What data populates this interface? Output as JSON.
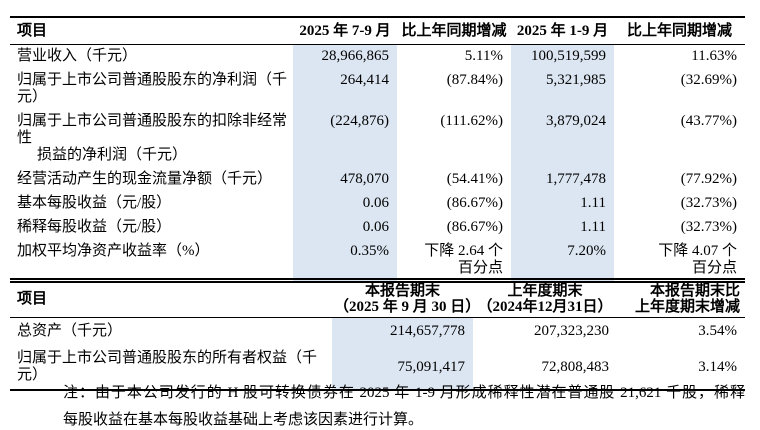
{
  "colors": {
    "highlight": "#dce6f2",
    "border": "#000000",
    "text": "#000000",
    "background": "#ffffff"
  },
  "table1": {
    "headers": [
      "项目",
      "2025 年 7-9 月",
      "比上年同期增减",
      "2025 年 1-9 月",
      "比上年同期增减"
    ],
    "rows": [
      {
        "label": [
          "营业收入（千元）"
        ],
        "cells": [
          [
            "28,966,865"
          ],
          [
            "5.11%"
          ],
          [
            "100,519,599"
          ],
          [
            "11.63%"
          ]
        ]
      },
      {
        "label": [
          "归属于上市公司普通股股东的净利润（千元）"
        ],
        "cells": [
          [
            "264,414"
          ],
          [
            "(87.84%)"
          ],
          [
            "5,321,985"
          ],
          [
            "(32.69%)"
          ]
        ]
      },
      {
        "label": [
          "归属于上市公司普通股股东的扣除非经常性",
          "损益的净利润（千元）"
        ],
        "cells": [
          [
            "(224,876)"
          ],
          [
            "(111.62%)"
          ],
          [
            "3,879,024"
          ],
          [
            "(43.77%)"
          ]
        ]
      },
      {
        "label": [
          "经营活动产生的现金流量净额（千元）"
        ],
        "cells": [
          [
            "478,070"
          ],
          [
            "(54.41%)"
          ],
          [
            "1,777,478"
          ],
          [
            "(77.92%)"
          ]
        ]
      },
      {
        "label": [
          "基本每股收益（元/股）"
        ],
        "cells": [
          [
            "0.06"
          ],
          [
            "(86.67%)"
          ],
          [
            "1.11"
          ],
          [
            "(32.73%)"
          ]
        ]
      },
      {
        "label": [
          "稀释每股收益（元/股）"
        ],
        "cells": [
          [
            "0.06"
          ],
          [
            "(86.67%)"
          ],
          [
            "1.11"
          ],
          [
            "(32.73%)"
          ]
        ]
      },
      {
        "label": [
          "加权平均净资产收益率（%）"
        ],
        "cells": [
          [
            "0.35%"
          ],
          [
            "下降 2.64 个",
            "百分点"
          ],
          [
            "7.20%"
          ],
          [
            "下降 4.07 个",
            "百分点"
          ]
        ]
      }
    ]
  },
  "table2": {
    "headers": [
      [
        "项目"
      ],
      [
        "本报告期末",
        "（2025 年 9 月 30 日）"
      ],
      [
        "上年度期末",
        "（2024年12月31日）"
      ],
      [
        "本报告期末比",
        "上年度期末增减"
      ]
    ],
    "rows": [
      {
        "label": "总资产（千元）",
        "cells": [
          "214,657,778",
          "207,323,230",
          "3.54%"
        ]
      },
      {
        "label": "归属于上市公司普通股股东的所有者权益（千元）",
        "cells": [
          "75,091,417",
          "72,808,483",
          "3.14%"
        ]
      }
    ]
  },
  "note": {
    "lines": [
      "注：由于本公司发行的 H 股可转换债券在 2025 年 1-9 月形成稀释性潜在普通股 21,621 千股，稀释",
      "每股收益在基本每股收益基础上考虑该因素进行计算。"
    ]
  }
}
